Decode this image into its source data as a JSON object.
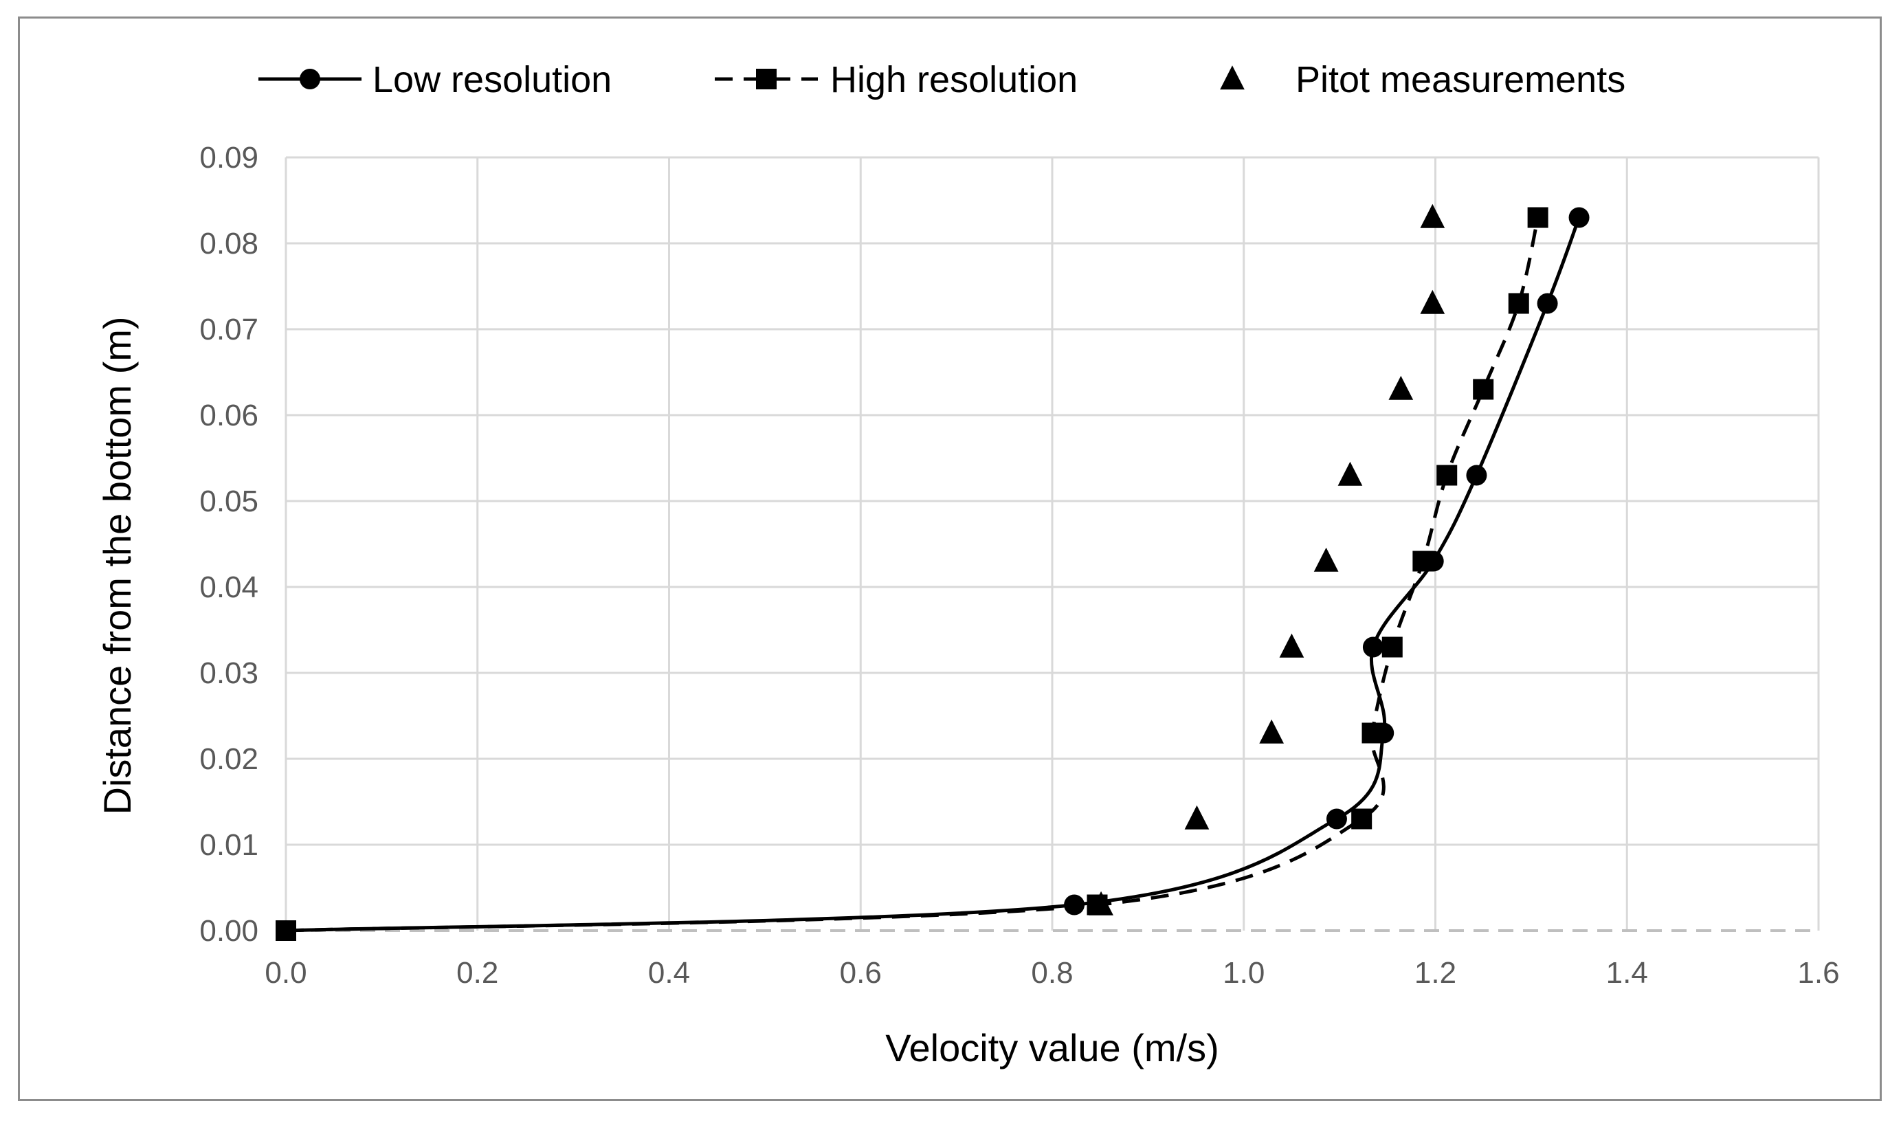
{
  "chart_data": {
    "type": "line",
    "title": "",
    "xlabel": "Velocity value (m/s)",
    "ylabel": "Distance from the bottom (m)",
    "xlim": [
      0,
      1.6
    ],
    "ylim": [
      0,
      0.09
    ],
    "xticks": [
      0.0,
      0.2,
      0.4,
      0.6,
      0.8,
      1.0,
      1.2,
      1.4,
      1.6
    ],
    "yticks": [
      0.0,
      0.01,
      0.02,
      0.03,
      0.04,
      0.05,
      0.06,
      0.07,
      0.08,
      0.09
    ],
    "xtick_labels": [
      "0.0",
      "0.2",
      "0.4",
      "0.6",
      "0.8",
      "1.0",
      "1.2",
      "1.4",
      "1.6"
    ],
    "ytick_labels": [
      "0.00",
      "0.01",
      "0.02",
      "0.03",
      "0.04",
      "0.05",
      "0.06",
      "0.07",
      "0.08",
      "0.09"
    ],
    "grid": true,
    "legend_position": "top",
    "series": [
      {
        "name": "Low resolution",
        "line": "solid",
        "marker": "circle",
        "color": "#000000",
        "x": [
          0.0,
          0.823,
          1.097,
          1.146,
          1.135,
          1.198,
          1.243,
          1.317,
          1.35
        ],
        "y": [
          0.0,
          0.003,
          0.013,
          0.023,
          0.033,
          0.043,
          0.053,
          0.073,
          0.083
        ]
      },
      {
        "name": "High resolution",
        "line": "dashed",
        "marker": "square",
        "color": "#000000",
        "x": [
          0.0,
          0.847,
          1.123,
          1.134,
          1.155,
          1.187,
          1.212,
          1.25,
          1.287,
          1.307
        ],
        "y": [
          0.0,
          0.003,
          0.013,
          0.023,
          0.033,
          0.043,
          0.053,
          0.063,
          0.073,
          0.083
        ]
      },
      {
        "name": "Pitot measurements",
        "line": "none",
        "marker": "triangle",
        "color": "#000000",
        "x": [
          0.851,
          0.951,
          1.029,
          1.05,
          1.086,
          1.111,
          1.164,
          1.197,
          1.197
        ],
        "y": [
          0.003,
          0.013,
          0.023,
          0.033,
          0.043,
          0.053,
          0.063,
          0.073,
          0.083
        ]
      }
    ]
  }
}
